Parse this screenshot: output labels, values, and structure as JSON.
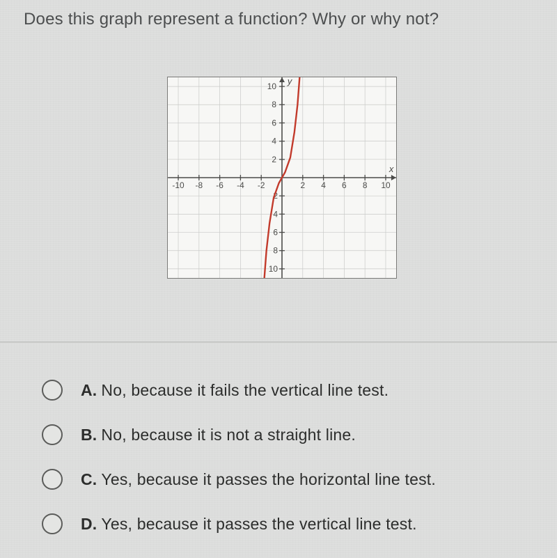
{
  "question": "Does this graph represent a function? Why or why not?",
  "graph": {
    "type": "line",
    "x_axis_label": "x",
    "y_axis_label": "y",
    "xlim": [
      -11,
      11
    ],
    "ylim": [
      -11,
      11
    ],
    "tick_step": 2,
    "x_tick_labels": [
      "-10",
      "-8",
      "-6",
      "-4",
      "-2",
      "2",
      "4",
      "6",
      "8",
      "10"
    ],
    "y_tick_labels_pos": [
      "2",
      "4",
      "6",
      "8",
      "10"
    ],
    "y_tick_labels_neg": [
      "-2",
      "-4",
      "-6",
      "-8",
      "-10"
    ],
    "x_tick_label_skip_zero_neighbor": "-2",
    "curve_type": "cubic",
    "curve_points": [
      [
        -1.7,
        -11
      ],
      [
        -1.5,
        -8
      ],
      [
        -1.2,
        -5
      ],
      [
        -0.8,
        -2.2
      ],
      [
        -0.3,
        -0.6
      ],
      [
        0,
        0
      ],
      [
        0.3,
        0.6
      ],
      [
        0.8,
        2.2
      ],
      [
        1.2,
        5
      ],
      [
        1.5,
        8
      ],
      [
        1.7,
        11
      ]
    ],
    "curve_color": "#c23a2b",
    "curve_width": 2.4,
    "axis_color": "#4b4b49",
    "grid_color": "#c9cac8",
    "background_color": "#f7f7f5",
    "tick_label_fontsize": 12,
    "tick_label_color": "#4b4b49"
  },
  "options": [
    {
      "letter": "A.",
      "text": "No, because it fails the vertical line test."
    },
    {
      "letter": "B.",
      "text": "No, because it is not a straight line."
    },
    {
      "letter": "C.",
      "text": "Yes, because it passes the horizontal line test."
    },
    {
      "letter": "D.",
      "text": "Yes, because it passes the vertical line test."
    }
  ],
  "colors": {
    "page_bg": "#dedfde",
    "question_text": "#4c4e4f",
    "option_text": "#2c2d2c",
    "radio_border": "#5b5c5a",
    "divider": "#c6c7c5"
  }
}
